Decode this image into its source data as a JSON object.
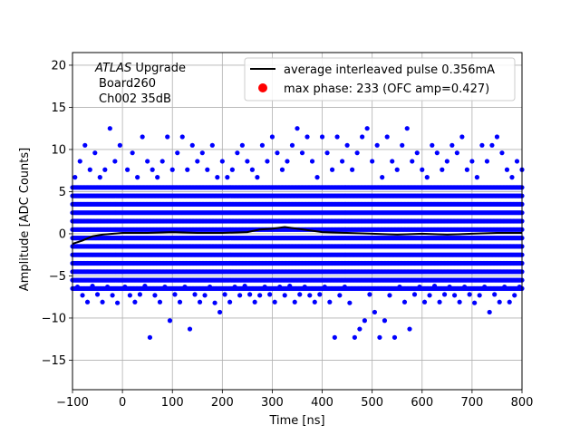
{
  "chart_data": {
    "type": "scatter",
    "xlabel": "Time [ns]",
    "ylabel": "Amplitude [ADC Counts]",
    "xlim": [
      -100,
      800
    ],
    "ylim": [
      -18.5,
      21.5
    ],
    "x_ticks": [
      -100,
      0,
      100,
      200,
      300,
      400,
      500,
      600,
      700,
      800
    ],
    "y_ticks": [
      -15,
      -10,
      -5,
      0,
      5,
      10,
      15,
      20
    ],
    "grid": true,
    "legend_position": "top-right",
    "annotation": {
      "italic": "ATLAS",
      "line1_rest": " Upgrade",
      "line2": "Board260",
      "line3": "Ch002 35dB"
    },
    "series": [
      {
        "name": "average interleaved pulse 0.356mA",
        "kind": "line",
        "color": "#000000",
        "points": [
          [
            -100,
            -1.2
          ],
          [
            -80,
            -0.8
          ],
          [
            -60,
            -0.3
          ],
          [
            -40,
            -0.1
          ],
          [
            0,
            0.1
          ],
          [
            50,
            0.1
          ],
          [
            100,
            0.2
          ],
          [
            150,
            0.1
          ],
          [
            200,
            0.1
          ],
          [
            250,
            0.2
          ],
          [
            275,
            0.5
          ],
          [
            300,
            0.6
          ],
          [
            325,
            0.8
          ],
          [
            350,
            0.6
          ],
          [
            375,
            0.4
          ],
          [
            400,
            0.2
          ],
          [
            450,
            0.1
          ],
          [
            500,
            0.0
          ],
          [
            550,
            -0.1
          ],
          [
            600,
            0.0
          ],
          [
            650,
            -0.1
          ],
          [
            700,
            0.0
          ],
          [
            750,
            0.1
          ],
          [
            800,
            0.1
          ]
        ]
      },
      {
        "name": "max phase: 233 (OFC amp=0.427)",
        "kind": "marker",
        "color": "#ff0000",
        "points": []
      },
      {
        "name": "",
        "kind": "scatter",
        "color": "#0000ff",
        "dense_band": {
          "levels": [
            -6.5,
            -5.5,
            -4.5,
            -3.5,
            -2.5,
            -1.5,
            -0.5,
            0.5,
            1.5,
            2.5,
            3.5,
            4.5,
            5.5
          ],
          "x_range": [
            -100,
            800
          ]
        },
        "points": [
          [
            -95,
            6.7
          ],
          [
            -90,
            -6.3
          ],
          [
            -85,
            8.6
          ],
          [
            -80,
            -7.3
          ],
          [
            -75,
            10.5
          ],
          [
            -70,
            -8.1
          ],
          [
            -65,
            7.6
          ],
          [
            -60,
            -6.2
          ],
          [
            -55,
            9.6
          ],
          [
            -50,
            -7.2
          ],
          [
            -45,
            6.7
          ],
          [
            -40,
            -8.1
          ],
          [
            -35,
            7.6
          ],
          [
            -30,
            -6.3
          ],
          [
            -25,
            12.5
          ],
          [
            -20,
            -7.3
          ],
          [
            -15,
            8.6
          ],
          [
            -10,
            -8.2
          ],
          [
            -5,
            10.5
          ],
          [
            5,
            -6.3
          ],
          [
            10,
            7.6
          ],
          [
            15,
            -7.3
          ],
          [
            20,
            9.6
          ],
          [
            25,
            -8.1
          ],
          [
            30,
            6.7
          ],
          [
            35,
            -7.2
          ],
          [
            40,
            11.5
          ],
          [
            45,
            -6.2
          ],
          [
            50,
            8.6
          ],
          [
            55,
            -12.3
          ],
          [
            60,
            7.6
          ],
          [
            65,
            -7.3
          ],
          [
            70,
            6.7
          ],
          [
            75,
            -8.1
          ],
          [
            80,
            8.6
          ],
          [
            85,
            -6.3
          ],
          [
            90,
            11.5
          ],
          [
            95,
            -10.3
          ],
          [
            100,
            7.6
          ],
          [
            105,
            -7.2
          ],
          [
            110,
            9.6
          ],
          [
            115,
            -8.1
          ],
          [
            120,
            11.5
          ],
          [
            125,
            -6.3
          ],
          [
            130,
            7.6
          ],
          [
            135,
            -11.3
          ],
          [
            140,
            10.5
          ],
          [
            145,
            -7.2
          ],
          [
            150,
            8.6
          ],
          [
            155,
            -8.1
          ],
          [
            160,
            9.6
          ],
          [
            165,
            -7.3
          ],
          [
            170,
            7.6
          ],
          [
            175,
            -6.3
          ],
          [
            180,
            10.5
          ],
          [
            185,
            -8.2
          ],
          [
            190,
            6.7
          ],
          [
            195,
            -9.3
          ],
          [
            200,
            8.6
          ],
          [
            205,
            -7.2
          ],
          [
            210,
            6.7
          ],
          [
            215,
            -8.1
          ],
          [
            220,
            7.6
          ],
          [
            225,
            -6.3
          ],
          [
            230,
            9.6
          ],
          [
            235,
            -7.3
          ],
          [
            240,
            10.5
          ],
          [
            245,
            -6.2
          ],
          [
            250,
            8.6
          ],
          [
            255,
            -7.2
          ],
          [
            260,
            7.6
          ],
          [
            265,
            -8.1
          ],
          [
            270,
            6.7
          ],
          [
            275,
            -7.3
          ],
          [
            280,
            10.5
          ],
          [
            285,
            -6.3
          ],
          [
            290,
            8.6
          ],
          [
            295,
            -7.2
          ],
          [
            300,
            11.5
          ],
          [
            305,
            -8.1
          ],
          [
            310,
            9.6
          ],
          [
            315,
            -6.3
          ],
          [
            320,
            7.6
          ],
          [
            325,
            -7.3
          ],
          [
            330,
            8.6
          ],
          [
            335,
            -6.2
          ],
          [
            340,
            10.5
          ],
          [
            345,
            -8.1
          ],
          [
            350,
            12.5
          ],
          [
            355,
            -7.2
          ],
          [
            360,
            9.6
          ],
          [
            365,
            -6.3
          ],
          [
            370,
            11.5
          ],
          [
            375,
            -7.3
          ],
          [
            380,
            8.6
          ],
          [
            385,
            -8.1
          ],
          [
            390,
            6.7
          ],
          [
            395,
            -7.2
          ],
          [
            400,
            11.5
          ],
          [
            405,
            -6.3
          ],
          [
            410,
            9.6
          ],
          [
            415,
            -8.1
          ],
          [
            420,
            7.6
          ],
          [
            425,
            -12.3
          ],
          [
            430,
            11.5
          ],
          [
            435,
            -7.3
          ],
          [
            440,
            8.6
          ],
          [
            445,
            -6.3
          ],
          [
            450,
            10.5
          ],
          [
            455,
            -8.2
          ],
          [
            460,
            7.6
          ],
          [
            465,
            -12.3
          ],
          [
            470,
            9.6
          ],
          [
            475,
            -11.3
          ],
          [
            480,
            11.5
          ],
          [
            485,
            -10.3
          ],
          [
            490,
            12.5
          ],
          [
            495,
            -7.2
          ],
          [
            500,
            8.6
          ],
          [
            505,
            -9.3
          ],
          [
            510,
            10.5
          ],
          [
            515,
            -12.3
          ],
          [
            520,
            6.7
          ],
          [
            525,
            -10.3
          ],
          [
            530,
            11.5
          ],
          [
            535,
            -7.3
          ],
          [
            540,
            8.6
          ],
          [
            545,
            -12.3
          ],
          [
            550,
            7.6
          ],
          [
            555,
            -6.3
          ],
          [
            560,
            10.5
          ],
          [
            565,
            -8.1
          ],
          [
            570,
            12.5
          ],
          [
            575,
            -11.3
          ],
          [
            580,
            8.6
          ],
          [
            585,
            -7.2
          ],
          [
            590,
            9.6
          ],
          [
            595,
            -6.3
          ],
          [
            600,
            7.6
          ],
          [
            605,
            -8.1
          ],
          [
            610,
            6.7
          ],
          [
            615,
            -7.3
          ],
          [
            620,
            10.5
          ],
          [
            625,
            -6.2
          ],
          [
            630,
            9.6
          ],
          [
            635,
            -8.1
          ],
          [
            640,
            7.6
          ],
          [
            645,
            -7.2
          ],
          [
            650,
            8.6
          ],
          [
            655,
            -6.3
          ],
          [
            660,
            10.5
          ],
          [
            665,
            -7.3
          ],
          [
            670,
            9.6
          ],
          [
            675,
            -8.1
          ],
          [
            680,
            11.5
          ],
          [
            685,
            -6.3
          ],
          [
            690,
            7.6
          ],
          [
            695,
            -7.2
          ],
          [
            700,
            8.6
          ],
          [
            705,
            -8.2
          ],
          [
            710,
            6.7
          ],
          [
            715,
            -7.3
          ],
          [
            720,
            10.5
          ],
          [
            725,
            -6.3
          ],
          [
            730,
            8.6
          ],
          [
            735,
            -9.3
          ],
          [
            740,
            10.5
          ],
          [
            745,
            -7.2
          ],
          [
            750,
            11.5
          ],
          [
            755,
            -8.1
          ],
          [
            760,
            9.6
          ],
          [
            765,
            -6.3
          ],
          [
            770,
            7.6
          ],
          [
            775,
            -8.1
          ],
          [
            780,
            6.7
          ],
          [
            785,
            -7.3
          ],
          [
            790,
            8.6
          ],
          [
            795,
            -6.3
          ],
          [
            800,
            7.6
          ]
        ]
      }
    ]
  }
}
